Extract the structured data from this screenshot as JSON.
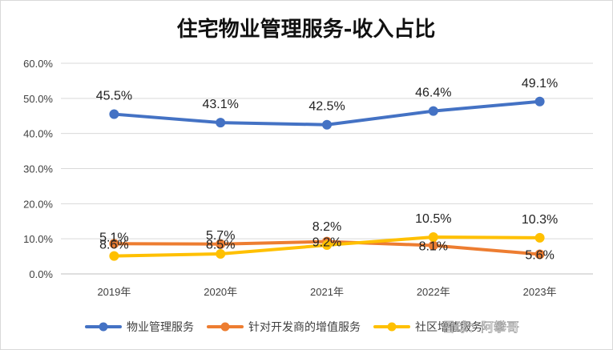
{
  "watermark": "雪球：阿攀哥",
  "chart_data": {
    "type": "line",
    "title": "住宅物业管理服务-收入占比",
    "categories": [
      "2019年",
      "2020年",
      "2021年",
      "2022年",
      "2023年"
    ],
    "y_ticks": [
      "0.0%",
      "10.0%",
      "20.0%",
      "30.0%",
      "40.0%",
      "50.0%",
      "60.0%"
    ],
    "ylim": [
      0,
      60
    ],
    "grid": true,
    "legend_position": "bottom",
    "series": [
      {
        "name": "物业管理服务",
        "color": "#4472c4",
        "values": [
          45.5,
          43.1,
          42.5,
          46.4,
          49.1
        ],
        "labels": [
          "45.5%",
          "43.1%",
          "42.5%",
          "46.4%",
          "49.1%"
        ]
      },
      {
        "name": "针对开发商的增值服务",
        "color": "#ed7d31",
        "values": [
          8.6,
          8.5,
          9.2,
          8.1,
          5.6
        ],
        "labels": [
          "8.6%",
          "8.5%",
          "9.2%",
          "8.1%",
          "5.6%"
        ]
      },
      {
        "name": "社区增值服务",
        "color": "#ffc000",
        "values": [
          5.1,
          5.7,
          8.2,
          10.5,
          10.3
        ],
        "labels": [
          "5.1%",
          "5.7%",
          "8.2%",
          "10.5%",
          "10.3%"
        ]
      }
    ]
  }
}
